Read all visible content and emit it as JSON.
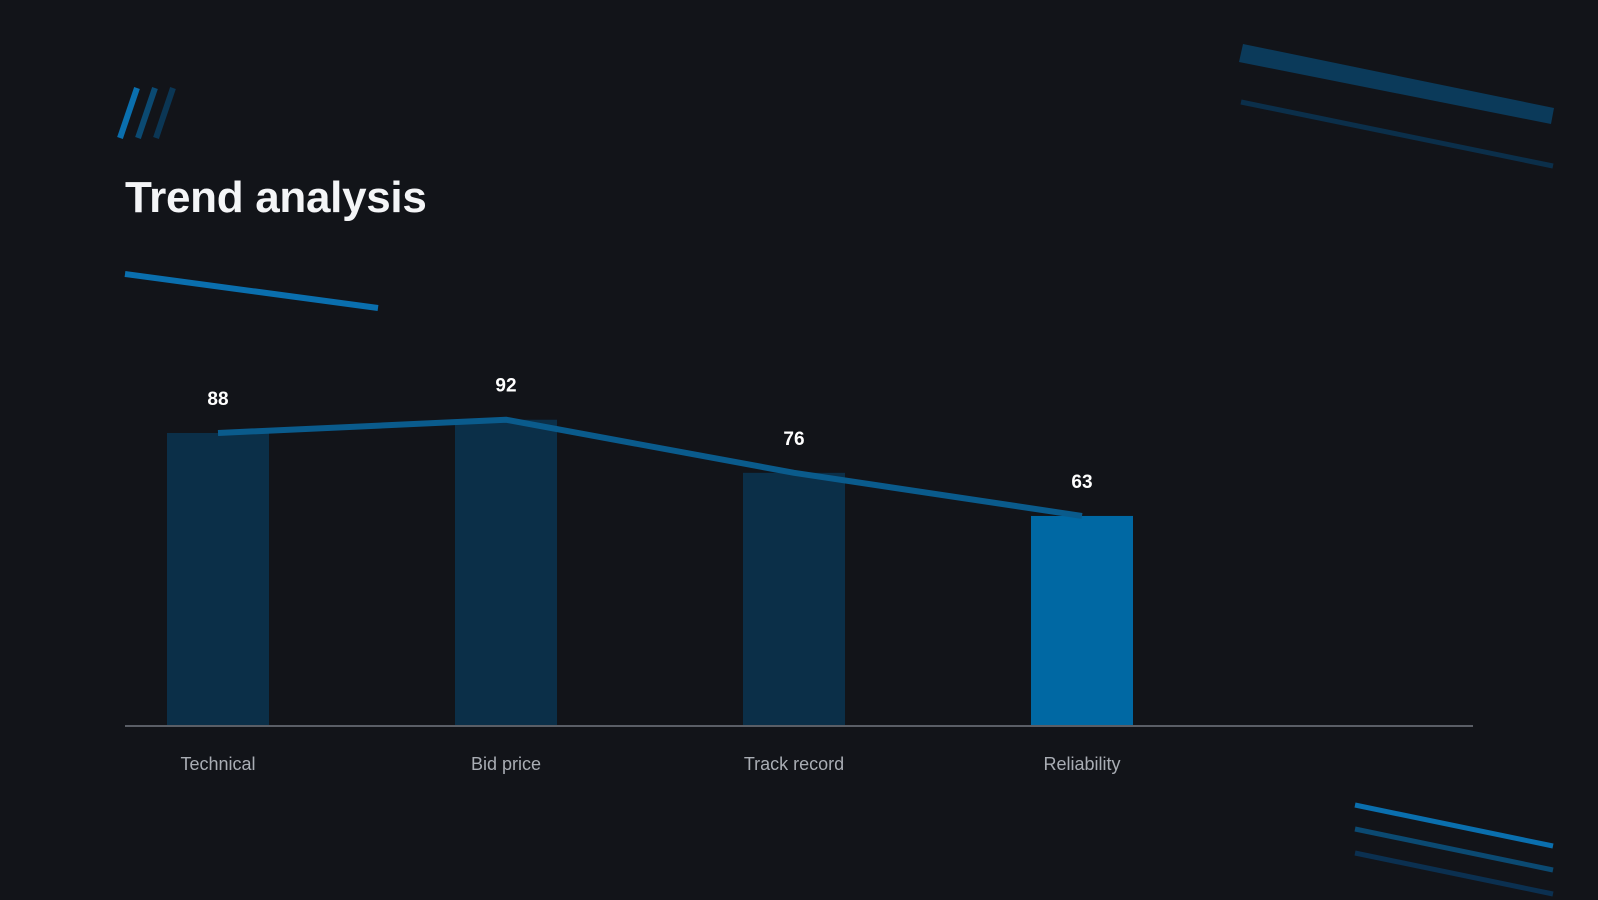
{
  "slide": {
    "title": "Trend analysis"
  },
  "colors": {
    "background": "#121419",
    "bar": "#0b2f48",
    "bar_highlight": "#0068a3",
    "trend_line": "#0a5b8c",
    "accent": "#0a6fae",
    "accent_dark": "#0b4a72",
    "axis": "#5a5e66",
    "label_text": "#a9adb4",
    "value_text": "#ffffff"
  },
  "chart_data": {
    "type": "bar",
    "categories": [
      "Technical",
      "Bid price",
      "Track record",
      "Reliability"
    ],
    "values": [
      88,
      92,
      76,
      63
    ],
    "highlight_index": 3,
    "overlay": "line",
    "title": "Trend analysis",
    "xlabel": "",
    "ylabel": "",
    "ylim": [
      0,
      100
    ],
    "grid": false,
    "legend": "none"
  }
}
